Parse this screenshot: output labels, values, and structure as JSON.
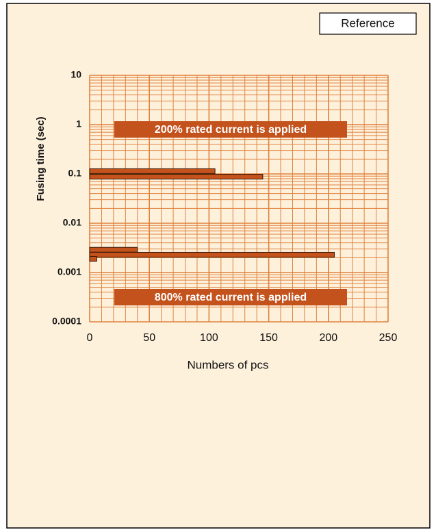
{
  "chart_data": {
    "type": "bar",
    "orientation": "horizontal",
    "reference": "Reference",
    "xlabel": "Numbers of pcs",
    "ylabel": "Fusing time (sec)",
    "annotations": [
      "200% rated current is applied",
      "800% rated current is applied"
    ],
    "y": [
      0.114,
      0.088,
      0.0029,
      0.0023,
      0.0019
    ],
    "values": [
      105,
      145,
      40,
      205,
      6
    ],
    "color": "#c4521c",
    "xlim": [
      0,
      250
    ],
    "xticks": [
      0,
      50,
      100,
      150,
      200,
      250
    ],
    "ylim": [
      0.0001,
      10
    ],
    "yticks": [
      0.0001,
      0.001,
      0.01,
      0.1,
      1,
      10
    ],
    "ylog": true,
    "grid": true,
    "grid_color": "#e0813c"
  }
}
